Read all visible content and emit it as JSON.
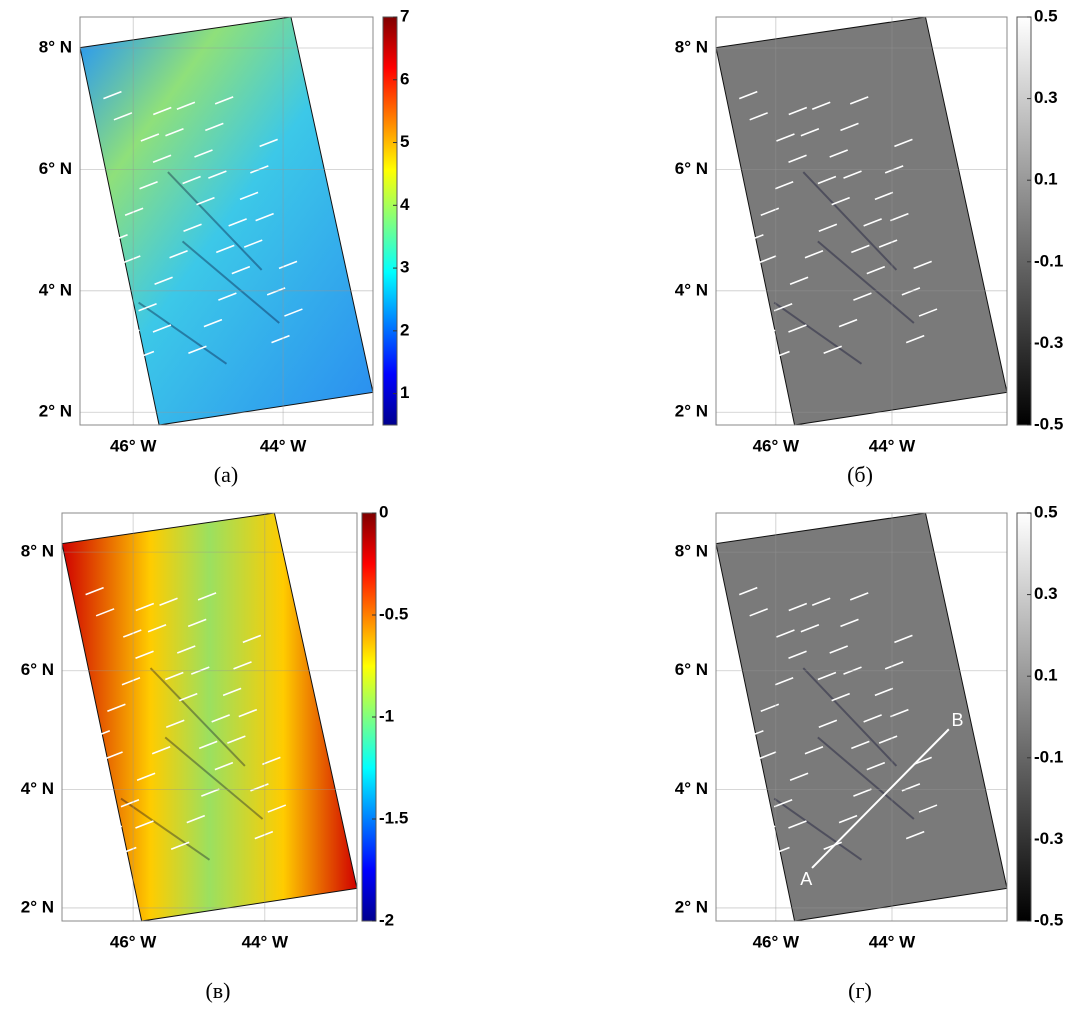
{
  "chart_data": [
    {
      "type": "image",
      "caption": "(а)",
      "colormap": "jet",
      "xlim": [
        -46.71,
        -42.8
      ],
      "xticks": [
        {
          "value": -46,
          "label": "46° W"
        },
        {
          "value": -44,
          "label": "44° W"
        }
      ],
      "ylim": [
        1.79,
        8.51
      ],
      "yticks": [
        {
          "value": 2,
          "label": "2° N"
        },
        {
          "value": 4,
          "label": "4° N"
        },
        {
          "value": 6,
          "label": "6° N"
        },
        {
          "value": 8,
          "label": "8° N"
        }
      ],
      "clim": [
        0.5,
        7
      ],
      "cticks": [
        1,
        2,
        3,
        4,
        5,
        6,
        7
      ]
    },
    {
      "type": "image",
      "caption": "(б)",
      "colormap": "gray",
      "xlim": [
        -47.03,
        -42.02
      ],
      "xticks": [
        {
          "value": -46,
          "label": "46° W"
        },
        {
          "value": -44,
          "label": "44° W"
        }
      ],
      "ylim": [
        1.79,
        8.51
      ],
      "yticks": [
        {
          "value": 2,
          "label": "2° N"
        },
        {
          "value": 4,
          "label": "4° N"
        },
        {
          "value": 6,
          "label": "6° N"
        },
        {
          "value": 8,
          "label": "8° N"
        }
      ],
      "clim": [
        -0.5,
        0.5
      ],
      "cticks": [
        -0.5,
        -0.3,
        -0.1,
        0.1,
        0.3,
        0.5
      ]
    },
    {
      "type": "image",
      "caption": "(в)",
      "colormap": "jet",
      "xlim": [
        -47.08,
        -42.6
      ],
      "xticks": [
        {
          "value": -46,
          "label": "46° W"
        },
        {
          "value": -44,
          "label": "44° W"
        }
      ],
      "ylim": [
        1.78,
        8.66
      ],
      "yticks": [
        {
          "value": 2,
          "label": "2° N"
        },
        {
          "value": 4,
          "label": "4° N"
        },
        {
          "value": 6,
          "label": "6° N"
        },
        {
          "value": 8,
          "label": "8° N"
        }
      ],
      "clim": [
        -2,
        0
      ],
      "cticks": [
        -2,
        -1.5,
        -1,
        -0.5,
        0
      ]
    },
    {
      "type": "image",
      "caption": "(г)",
      "colormap": "gray",
      "xlim": [
        -47.03,
        -42.02
      ],
      "xticks": [
        {
          "value": -46,
          "label": "46° W"
        },
        {
          "value": -44,
          "label": "44° W"
        }
      ],
      "ylim": [
        1.78,
        8.66
      ],
      "yticks": [
        {
          "value": 2,
          "label": "2° N"
        },
        {
          "value": 4,
          "label": "4° N"
        },
        {
          "value": 6,
          "label": "6° N"
        },
        {
          "value": 8,
          "label": "8° N"
        }
      ],
      "clim": [
        -0.5,
        0.5
      ],
      "cticks": [
        -0.5,
        -0.3,
        -0.1,
        0.1,
        0.3,
        0.5
      ],
      "annotations": [
        "A",
        "B"
      ]
    }
  ]
}
